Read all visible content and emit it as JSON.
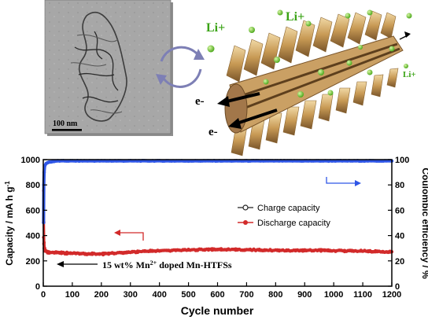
{
  "figure": {
    "scale_bar_label": "100 nm",
    "ions": [
      "Li+",
      "Li+",
      "Li+"
    ],
    "electrons": [
      "e-",
      "e-"
    ]
  },
  "chart_data": {
    "type": "scatter",
    "title": "",
    "xlabel": "Cycle number",
    "ylabel_left": "Capacity / mA h g-1",
    "ylabel_right": "Coulombic efficiency / %",
    "xlim": [
      0,
      1200
    ],
    "ylim_left": [
      0,
      1000
    ],
    "ylim_right": [
      0,
      100
    ],
    "x_ticks": [
      0,
      100,
      200,
      300,
      400,
      500,
      600,
      700,
      800,
      900,
      1000,
      1100,
      1200
    ],
    "y_ticks_left": [
      0,
      200,
      400,
      600,
      800,
      1000
    ],
    "y_ticks_right": [
      0,
      20,
      40,
      60,
      80,
      100
    ],
    "grid": false,
    "legend_position": "center-right",
    "annotation": "15 wt% Mn2+ doped Mn-HTFSs",
    "series": [
      {
        "name": "Charge capacity",
        "axis": "left",
        "color": "#d22a2a",
        "x": [
          1,
          2,
          3,
          5,
          10,
          20,
          50,
          100,
          150,
          200,
          250,
          300,
          350,
          400,
          450,
          500,
          550,
          600,
          650,
          700,
          750,
          800,
          850,
          900,
          950,
          1000,
          1050,
          1100,
          1150,
          1200
        ],
        "y": [
          760,
          500,
          350,
          300,
          280,
          270,
          265,
          262,
          258,
          255,
          262,
          270,
          278,
          283,
          285,
          288,
          290,
          292,
          290,
          288,
          286,
          284,
          282,
          283,
          284,
          282,
          280,
          278,
          275,
          270
        ]
      },
      {
        "name": "Discharge capacity",
        "axis": "left",
        "color": "#d22a2a",
        "x": [
          1,
          2,
          3,
          5,
          10,
          20,
          50,
          100,
          150,
          200,
          250,
          300,
          350,
          400,
          450,
          500,
          550,
          600,
          650,
          700,
          750,
          800,
          850,
          900,
          950,
          1000,
          1050,
          1100,
          1150,
          1200
        ],
        "y": [
          390,
          340,
          300,
          280,
          270,
          265,
          262,
          258,
          255,
          253,
          260,
          268,
          275,
          280,
          283,
          286,
          288,
          290,
          288,
          286,
          284,
          282,
          280,
          281,
          282,
          280,
          278,
          276,
          273,
          268
        ]
      },
      {
        "name": "Coulombic efficiency",
        "axis": "right",
        "color": "#2f56e6",
        "x": [
          1,
          2,
          3,
          5,
          10,
          20,
          50,
          100,
          200,
          300,
          400,
          500,
          600,
          700,
          800,
          900,
          1000,
          1100,
          1200
        ],
        "y": [
          50,
          80,
          90,
          95,
          97,
          98,
          99,
          99,
          99,
          99,
          99,
          99,
          99,
          99,
          99,
          99,
          99,
          99,
          99
        ]
      }
    ]
  }
}
